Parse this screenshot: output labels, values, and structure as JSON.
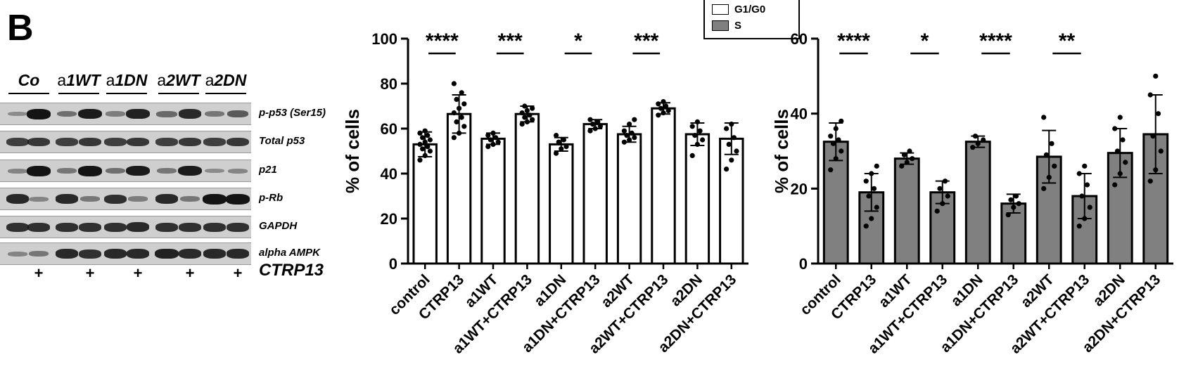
{
  "panel_label": "B",
  "blot": {
    "groups": [
      "Co",
      "a1WT",
      "a1DN",
      "a2WT",
      "a2DN"
    ],
    "group_parts": [
      {
        "pre": "",
        "main": "Co"
      },
      {
        "pre": "a",
        "main": "1WT"
      },
      {
        "pre": "a",
        "main": "1DN"
      },
      {
        "pre": "a",
        "main": "2WT"
      },
      {
        "pre": "a",
        "main": "2DN"
      }
    ],
    "rows": [
      {
        "label": "p-p53 (Ser15)",
        "intensity": [
          0.15,
          1.0,
          0.35,
          0.95,
          0.25,
          0.9,
          0.4,
          0.85,
          0.3,
          0.5
        ]
      },
      {
        "label": "Total p53",
        "intensity": [
          0.7,
          0.75,
          0.7,
          0.75,
          0.7,
          0.75,
          0.7,
          0.75,
          0.7,
          0.75
        ]
      },
      {
        "label": "p21",
        "intensity": [
          0.2,
          1.0,
          0.3,
          1.0,
          0.35,
          0.95,
          0.3,
          0.95,
          0.15,
          0.2
        ]
      },
      {
        "label": "p-Rb",
        "intensity": [
          0.85,
          0.2,
          0.85,
          0.3,
          0.8,
          0.25,
          0.85,
          0.3,
          1.0,
          1.0
        ]
      },
      {
        "label": "GAPDH",
        "intensity": [
          0.8,
          0.8,
          0.8,
          0.8,
          0.8,
          0.85,
          0.8,
          0.8,
          0.8,
          0.8
        ]
      },
      {
        "label": "alpha AMPK",
        "intensity": [
          0.2,
          0.3,
          0.85,
          0.8,
          0.85,
          0.85,
          0.9,
          0.85,
          0.85,
          0.85
        ]
      }
    ],
    "treatment_marks": [
      "+",
      "+",
      "+",
      "+",
      "+"
    ],
    "treatment_label": "CTRP13"
  },
  "legend": {
    "items": [
      {
        "label": "G1/G0",
        "color": "#ffffff"
      },
      {
        "label": "S",
        "color": "#808080"
      }
    ]
  },
  "chart_data": [
    {
      "type": "bar",
      "series_name": "G1/G0",
      "bar_color": "#ffffff",
      "ylabel": "% of cells",
      "ylim": [
        0,
        100
      ],
      "yticks": [
        0,
        20,
        40,
        60,
        80,
        100
      ],
      "categories": [
        "control",
        "CTRP13",
        "a1WT",
        "a1WT+CTRP13",
        "a1DN",
        "a1DN+CTRP13",
        "a2WT",
        "a2WT+CTRP13",
        "a2DN",
        "a2DN+CTRP13"
      ],
      "values": [
        53,
        66.5,
        55.5,
        66.5,
        53,
        62,
        57.5,
        69,
        57.5,
        55.5
      ],
      "errors": [
        5.5,
        8.5,
        2.5,
        3.5,
        3,
        2,
        3.5,
        2.5,
        5,
        7
      ],
      "points": [
        [
          46,
          48,
          50,
          51,
          52,
          53,
          54,
          55,
          56,
          57,
          58,
          59
        ],
        [
          56,
          58,
          61,
          63,
          65,
          67,
          69,
          71,
          73,
          76,
          80
        ],
        [
          52,
          53,
          54,
          55,
          56,
          57,
          58
        ],
        [
          62,
          63,
          64,
          65,
          66,
          67,
          68,
          69,
          70
        ],
        [
          49,
          51,
          52,
          54,
          55,
          57
        ],
        [
          59,
          60,
          61,
          62,
          63,
          64
        ],
        [
          54,
          55,
          56,
          57,
          58,
          59,
          62,
          64
        ],
        [
          66,
          67,
          68,
          69,
          70,
          71,
          72
        ],
        [
          48,
          53,
          55,
          57,
          59,
          61,
          63
        ],
        [
          42,
          46,
          50,
          53,
          56,
          60,
          62
        ]
      ],
      "significance": [
        {
          "pair": [
            0,
            1
          ],
          "label": "****"
        },
        {
          "pair": [
            2,
            3
          ],
          "label": "***"
        },
        {
          "pair": [
            4,
            5
          ],
          "label": "*"
        },
        {
          "pair": [
            6,
            7
          ],
          "label": "***"
        }
      ]
    },
    {
      "type": "bar",
      "series_name": "S",
      "bar_color": "#808080",
      "ylabel": "% of cells",
      "ylim": [
        0,
        60
      ],
      "yticks": [
        0,
        20,
        40,
        60
      ],
      "categories": [
        "control",
        "CTRP13",
        "a1WT",
        "a1WT+CTRP13",
        "a1DN",
        "a1DN+CTRP13",
        "a2WT",
        "a2WT+CTRP13",
        "a2DN",
        "a2DN+CTRP13"
      ],
      "values": [
        32.5,
        19,
        28,
        19,
        32.5,
        16,
        28.5,
        18,
        29.5,
        34.5
      ],
      "errors": [
        5,
        5,
        1.5,
        3,
        1.5,
        2.5,
        7,
        6,
        6.5,
        10.5
      ],
      "points": [
        [
          25,
          28,
          30,
          32,
          33,
          34,
          36,
          38
        ],
        [
          10,
          12,
          15,
          18,
          20,
          22,
          24,
          26
        ],
        [
          26,
          27,
          28,
          29,
          30
        ],
        [
          14,
          16,
          18,
          20,
          22
        ],
        [
          31,
          32,
          33,
          34
        ],
        [
          13,
          15,
          16,
          17,
          18
        ],
        [
          20,
          23,
          26,
          29,
          32,
          39
        ],
        [
          10,
          12,
          15,
          18,
          21,
          24,
          26
        ],
        [
          21,
          24,
          27,
          30,
          33,
          36,
          39
        ],
        [
          22,
          25,
          30,
          34,
          40,
          45,
          50
        ]
      ],
      "significance": [
        {
          "pair": [
            0,
            1
          ],
          "label": "****"
        },
        {
          "pair": [
            2,
            3
          ],
          "label": "*"
        },
        {
          "pair": [
            4,
            5
          ],
          "label": "****"
        },
        {
          "pair": [
            6,
            7
          ],
          "label": "**"
        }
      ]
    }
  ]
}
